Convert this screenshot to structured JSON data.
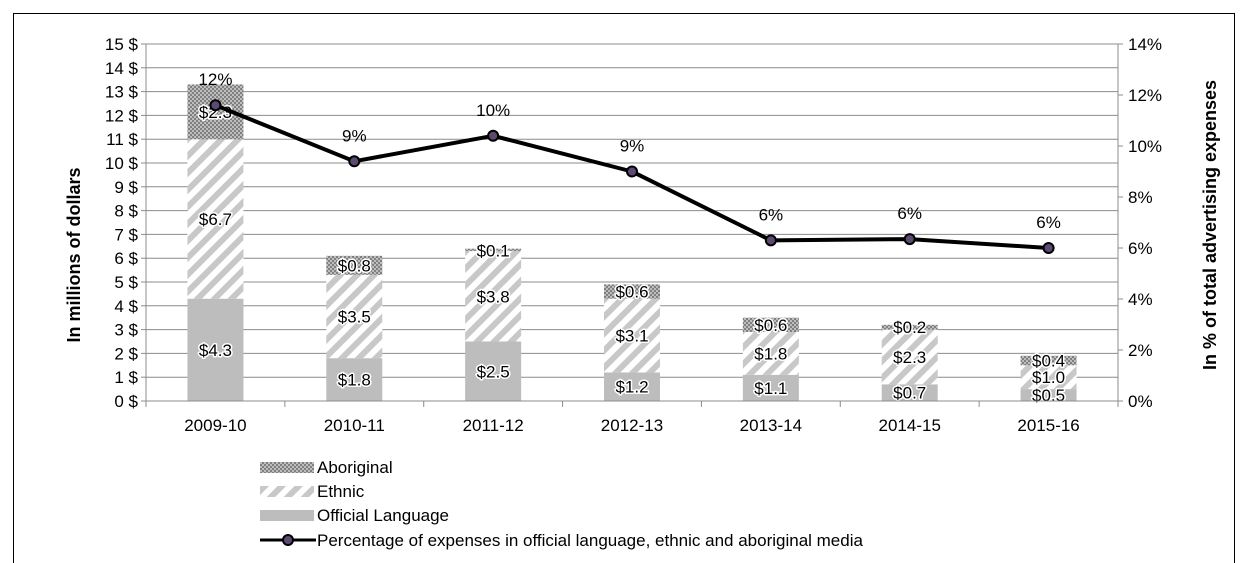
{
  "chart_data": {
    "type": "bar",
    "stacked": true,
    "categories": [
      "2009-10",
      "2010-11",
      "2011-12",
      "2012-13",
      "2013-14",
      "2014-15",
      "2015-16"
    ],
    "series": [
      {
        "name": "Official Language",
        "values": [
          4.3,
          1.8,
          2.5,
          1.2,
          1.1,
          0.7,
          0.5
        ],
        "labels": [
          "$4.3",
          "$1.8",
          "$2.5",
          "$1.2",
          "$1.1",
          "$0.7",
          "$0.5"
        ],
        "pattern": "solid-gray"
      },
      {
        "name": "Ethnic",
        "values": [
          6.7,
          3.5,
          3.8,
          3.1,
          1.8,
          2.3,
          1.0
        ],
        "labels": [
          "$6.7",
          "$3.5",
          "$3.8",
          "$3.1",
          "$1.8",
          "$2.3",
          "$1.0"
        ],
        "pattern": "diagonal-stripes"
      },
      {
        "name": "Aboriginal",
        "values": [
          2.3,
          0.8,
          0.1,
          0.6,
          0.6,
          0.2,
          0.4
        ],
        "labels": [
          "$2.3",
          "$0.8",
          "$0.1",
          "$0.6",
          "$0.6",
          "$0.2",
          "$0.4"
        ],
        "pattern": "dotted"
      }
    ],
    "line_series": {
      "name": "Percentage of expenses in official language, ethnic and aboriginal media",
      "values": [
        11.6,
        9.4,
        10.4,
        9.0,
        6.3,
        6.35,
        6.0
      ],
      "labels": [
        "12%",
        "9%",
        "10%",
        "9%",
        "6%",
        "6%",
        "6%"
      ],
      "axis": "right"
    },
    "ylabel": "In millions  of dollars",
    "y2label": "In % of total advertising expenses",
    "ylim": [
      0,
      15
    ],
    "y2lim": [
      0,
      14
    ],
    "y_ticks": [
      "0 $",
      "1 $",
      "2 $",
      "3 $",
      "4 $",
      "5 $",
      "6 $",
      "7 $",
      "8 $",
      "9 $",
      "10 $",
      "11 $",
      "12 $",
      "13 $",
      "14 $",
      "15 $"
    ],
    "y2_ticks": [
      "0%",
      "2%",
      "4%",
      "6%",
      "8%",
      "10%",
      "12%",
      "14%"
    ],
    "grid": true,
    "legend_position": "bottom-left",
    "colors": {
      "official": "#bdbdbd",
      "ethnic_stripe": "#c8c8c8",
      "aboriginal": "#9a9a9a",
      "line": "#000000",
      "marker": "#5b4a72"
    }
  }
}
